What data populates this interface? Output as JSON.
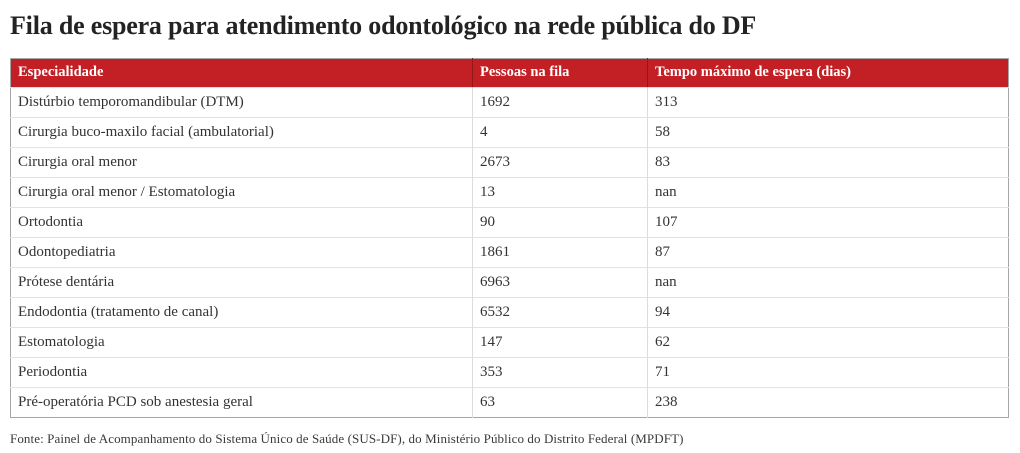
{
  "colors": {
    "header_bg": "#c32026",
    "header_text": "#ffffff",
    "title_text": "#232323",
    "cell_text": "#333333",
    "row_border": "#e2e2e2",
    "column_border": "#dcdcdc",
    "table_outer_border": "#a6a6a6"
  },
  "chart_data": {
    "type": "table",
    "title": "Fila de espera para atendimento odontológico na rede pública do DF",
    "columns": [
      "Especialidade",
      "Pessoas na fila",
      "Tempo máximo de espera (dias)"
    ],
    "rows": [
      [
        "Distúrbio temporomandibular (DTM)",
        "1692",
        "313"
      ],
      [
        "Cirurgia buco-maxilo facial (ambulatorial)",
        "4",
        "58"
      ],
      [
        "Cirurgia oral menor",
        "2673",
        "83"
      ],
      [
        "Cirurgia oral menor / Estomatologia",
        "13",
        "nan"
      ],
      [
        "Ortodontia",
        "90",
        "107"
      ],
      [
        "Odontopediatria",
        "1861",
        "87"
      ],
      [
        "Prótese dentária",
        "6963",
        "nan"
      ],
      [
        "Endodontia (tratamento de canal)",
        "6532",
        "94"
      ],
      [
        "Estomatologia",
        "147",
        "62"
      ],
      [
        "Periodontia",
        "353",
        "71"
      ],
      [
        "Pré-operatória PCD sob anestesia geral",
        "63",
        "238"
      ]
    ],
    "source": "Fonte: Painel de Acompanhamento do Sistema Único de Saúde (SUS-DF), do Ministério Público do Distrito Federal (MPDFT)",
    "legend": "none",
    "grid": "row-and-column-separators"
  }
}
